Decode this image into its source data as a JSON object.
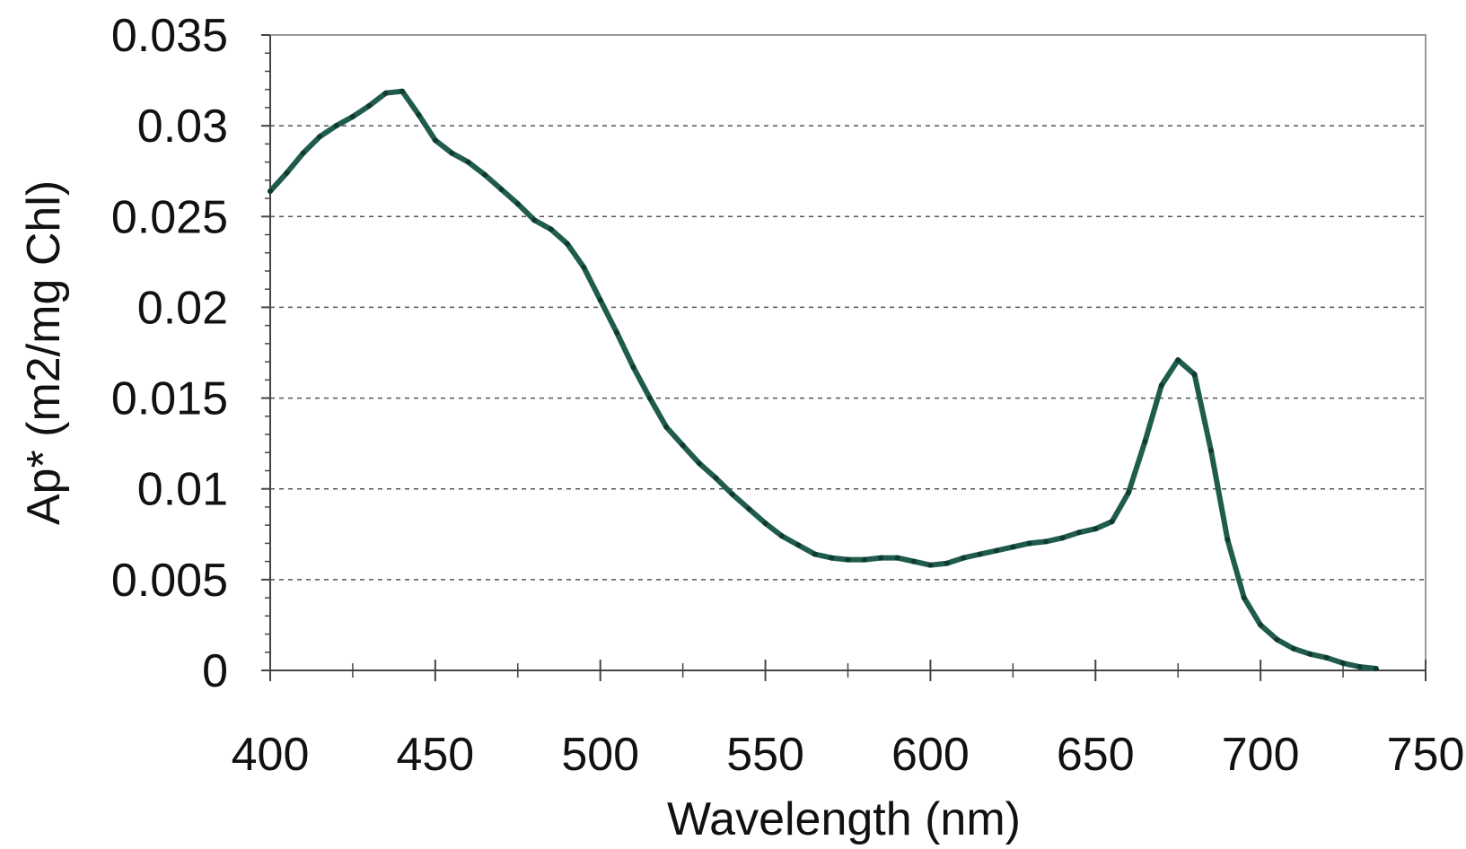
{
  "chart_data": {
    "type": "line",
    "title": "",
    "xlabel": "Wavelength (nm)",
    "ylabel": "Ap* (m2/mg Chl)",
    "xlim": [
      400,
      750
    ],
    "ylim": [
      0,
      0.035
    ],
    "x_ticks": [
      400,
      450,
      500,
      550,
      600,
      650,
      700,
      750
    ],
    "y_ticks": [
      0,
      0.005,
      0.01,
      0.015,
      0.02,
      0.025,
      0.03,
      0.035
    ],
    "x_tick_labels": [
      "400",
      "450",
      "500",
      "550",
      "600",
      "650",
      "700",
      "750"
    ],
    "y_tick_labels": [
      "0",
      "0.005",
      "0.01",
      "0.015",
      "0.02",
      "0.025",
      "0.03",
      "0.035"
    ],
    "grid": "horizontal dashed",
    "legend": "none",
    "line_color": "#1f5c4d",
    "series": [
      {
        "x": [
          400,
          405,
          410,
          415,
          420,
          425,
          430,
          435,
          440,
          445,
          450,
          455,
          460,
          465,
          470,
          475,
          480,
          485,
          490,
          495,
          500,
          505,
          510,
          515,
          520,
          525,
          530,
          535,
          540,
          545,
          550,
          555,
          560,
          565,
          570,
          575,
          580,
          585,
          590,
          595,
          600,
          605,
          610,
          615,
          620,
          625,
          630,
          635,
          640,
          645,
          650,
          655,
          660,
          665,
          670,
          675,
          680,
          685,
          690,
          695,
          700,
          705,
          710,
          715,
          720,
          725,
          730,
          735
        ],
        "y": [
          0.0264,
          0.0274,
          0.0285,
          0.0294,
          0.03,
          0.0305,
          0.0311,
          0.0318,
          0.0319,
          0.0306,
          0.0292,
          0.0285,
          0.028,
          0.0273,
          0.0265,
          0.0257,
          0.0248,
          0.0243,
          0.0235,
          0.0222,
          0.0204,
          0.0186,
          0.0167,
          0.015,
          0.0134,
          0.0124,
          0.0114,
          0.0106,
          0.0097,
          0.0089,
          0.0081,
          0.0074,
          0.0069,
          0.0064,
          0.0062,
          0.0061,
          0.0061,
          0.0062,
          0.0062,
          0.006,
          0.0058,
          0.0059,
          0.0062,
          0.0064,
          0.0066,
          0.0068,
          0.007,
          0.0071,
          0.0073,
          0.0076,
          0.0078,
          0.0082,
          0.0098,
          0.0126,
          0.0157,
          0.0171,
          0.0163,
          0.0121,
          0.0072,
          0.004,
          0.0025,
          0.0017,
          0.0012,
          0.0009,
          0.0007,
          0.0004,
          0.0002,
          0.0001
        ]
      }
    ]
  }
}
